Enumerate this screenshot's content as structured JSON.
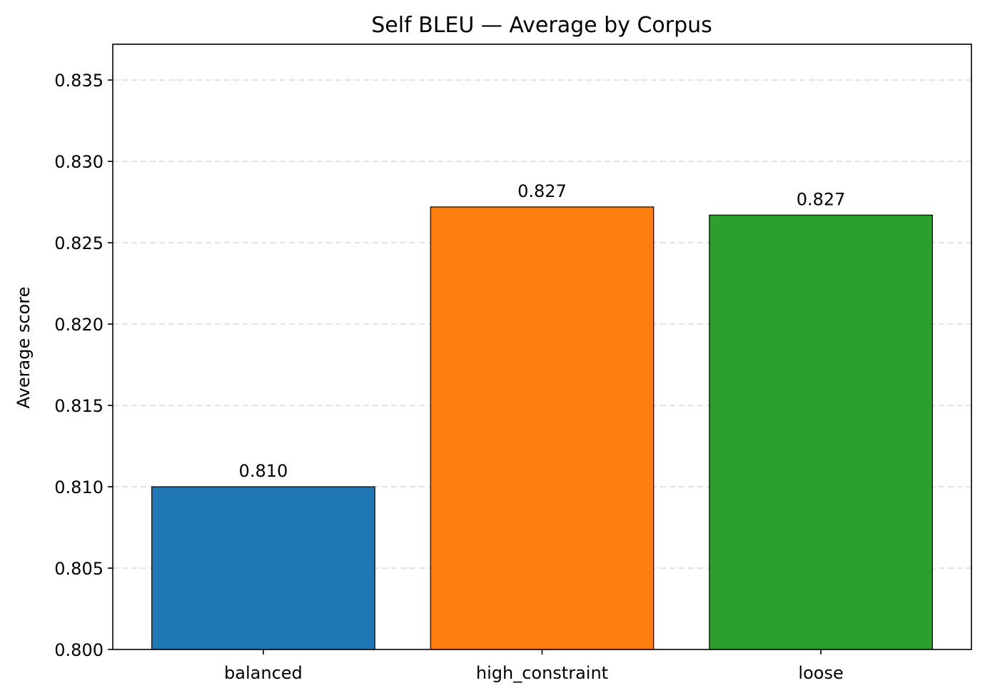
{
  "chart_data": {
    "type": "bar",
    "title": "Self BLEU — Average by Corpus",
    "xlabel": "",
    "ylabel": "Average score",
    "categories": [
      "balanced",
      "high_constraint",
      "loose"
    ],
    "values": [
      0.81,
      0.8272,
      0.8267
    ],
    "data_labels": [
      "0.810",
      "0.827",
      "0.827"
    ],
    "colors": [
      "#1f77b4",
      "#ff7f0e",
      "#2ca02c"
    ],
    "ylim": [
      0.8,
      0.8372
    ],
    "yticks": [
      0.8,
      0.805,
      0.81,
      0.815,
      0.82,
      0.825,
      0.83,
      0.835
    ],
    "ytick_labels": [
      "0.800",
      "0.805",
      "0.810",
      "0.815",
      "0.820",
      "0.825",
      "0.830",
      "0.835"
    ],
    "grid": "y-dashed",
    "legend": "none"
  }
}
